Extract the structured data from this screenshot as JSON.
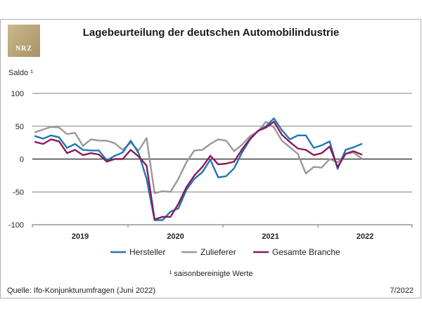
{
  "logo": {
    "text": "NRZ"
  },
  "chart_data": {
    "type": "line",
    "title": "Lagebeurteilung der deutschen Automobilindustrie",
    "ylabel": "Saldo ¹",
    "xlabel": "",
    "ylim": [
      -100,
      100
    ],
    "yticks": [
      100,
      50,
      0,
      -50,
      -100
    ],
    "ytick_labels": [
      "100",
      "50",
      "0",
      "-50",
      "-100"
    ],
    "year_labels": [
      "2019",
      "2020",
      "2021",
      "2022"
    ],
    "n_points": 42,
    "series": [
      {
        "name": "Hersteller",
        "color": "#1f77b4",
        "values": [
          35,
          31,
          36,
          33,
          17,
          23,
          14,
          13,
          13,
          -2,
          5,
          10,
          28,
          9,
          -30,
          -93,
          -93,
          -80,
          -75,
          -47,
          -30,
          -20,
          -1,
          -28,
          -26,
          -14,
          10,
          30,
          43,
          50,
          62,
          44,
          30,
          36,
          36,
          17,
          21,
          27,
          -15,
          14,
          18,
          23
        ]
      },
      {
        "name": "Zulieferer",
        "color": "#999999",
        "values": [
          41,
          45,
          49,
          48,
          38,
          40,
          20,
          30,
          28,
          28,
          24,
          14,
          25,
          13,
          32,
          -52,
          -49,
          -50,
          -30,
          -5,
          13,
          14,
          23,
          30,
          28,
          12,
          22,
          35,
          42,
          57,
          48,
          28,
          18,
          8,
          -22,
          -12,
          -13,
          0,
          -5,
          8,
          10,
          1
        ]
      },
      {
        "name": "Gesamte Branche",
        "color": "#8b1a5a",
        "values": [
          26,
          23,
          30,
          27,
          9,
          14,
          6,
          9,
          7,
          -4,
          0,
          0,
          14,
          4,
          -10,
          -92,
          -88,
          -88,
          -68,
          -43,
          -25,
          -12,
          5,
          -8,
          -7,
          -4,
          15,
          31,
          43,
          48,
          57,
          37,
          26,
          16,
          14,
          6,
          9,
          19,
          -12,
          8,
          12,
          7
        ]
      }
    ],
    "legend": [
      "Hersteller",
      "Zulieferer",
      "Gesamte Branche"
    ],
    "legend_position": "bottom-center",
    "grid": true
  },
  "footnote": "¹ saisonbereinigte Werte",
  "source": "Quelle: Ifo-Konjunkturumfragen (Juni 2022)",
  "date": "7/2022"
}
